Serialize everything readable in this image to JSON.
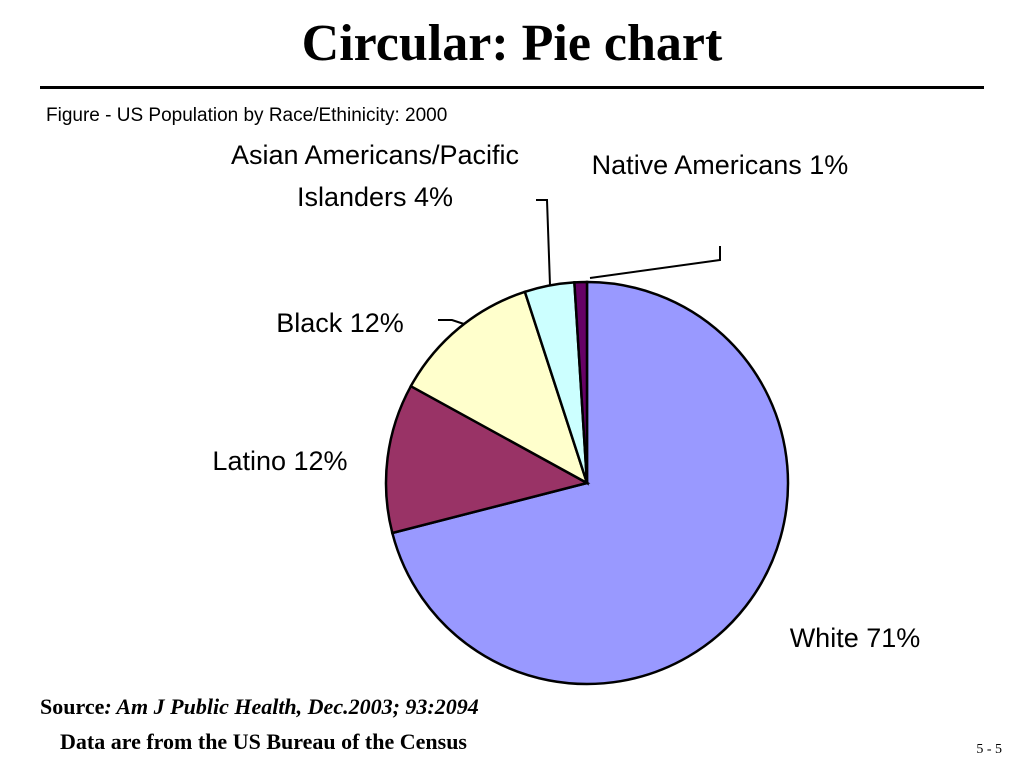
{
  "slide_title": "Circular: Pie chart",
  "chart_data": {
    "type": "pie",
    "title": "Figure - US Population by Race/Ethinicity: 2000",
    "categories": [
      "White",
      "Latino",
      "Black",
      "Asian Americans/Pacific Islanders",
      "Native Americans"
    ],
    "values": [
      71,
      12,
      12,
      4,
      1
    ],
    "value_labels": [
      "71%",
      "12%",
      "12%",
      "4%",
      "1%"
    ],
    "colors": [
      "#9999ff",
      "#993366",
      "#ffffcc",
      "#ccffff",
      "#660066"
    ]
  },
  "source": {
    "label": "Source",
    "text": ": Am J Public Health, Dec.2003; 93:2094"
  },
  "note": "Data are from the US Bureau of the Census",
  "page_number": "5 - 5"
}
